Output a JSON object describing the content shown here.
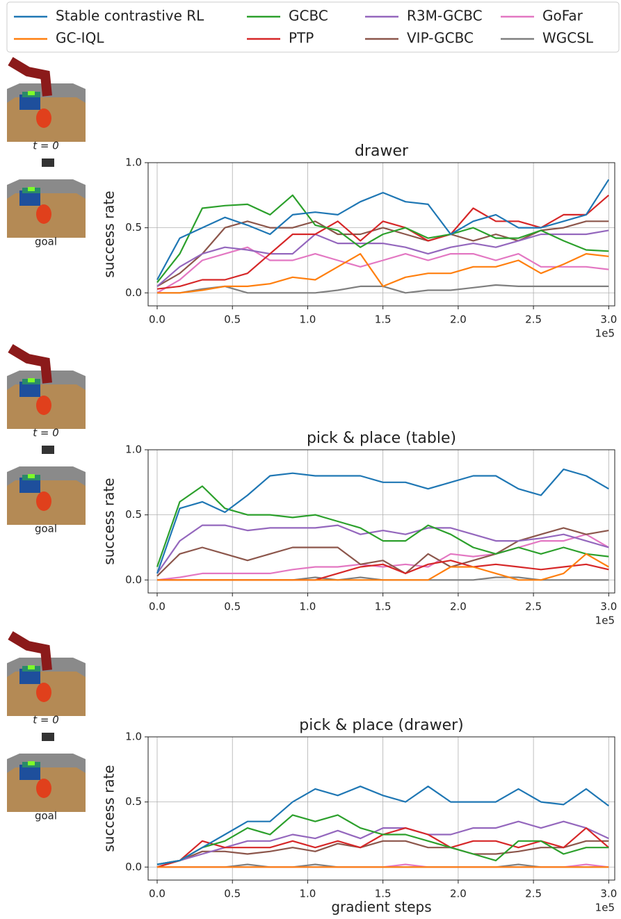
{
  "legend": {
    "ncol": 4
  },
  "thumbnails": [
    {
      "start_caption": "t = 0",
      "goal_caption": "goal"
    },
    {
      "start_caption": "t = 0",
      "goal_caption": "goal"
    },
    {
      "start_caption": "t = 0",
      "goal_caption": "goal"
    }
  ],
  "chart_data": [
    {
      "type": "line",
      "title": "drawer",
      "y_label": "success rate",
      "x_offset_label": "1e5",
      "grid": true,
      "xlim": [
        -0.06,
        3.04
      ],
      "ylim": [
        -0.1,
        1.0
      ],
      "xticks": [
        {
          "value": 0,
          "label": "0.0"
        },
        {
          "value": 0.5,
          "label": "0.5"
        },
        {
          "value": 1,
          "label": "1.0"
        },
        {
          "value": 1.5,
          "label": "1.5"
        },
        {
          "value": 2,
          "label": "2.0"
        },
        {
          "value": 2.5,
          "label": "2.5"
        },
        {
          "value": 3,
          "label": "3.0"
        }
      ],
      "yticks": [
        {
          "value": 0,
          "label": "0.0"
        },
        {
          "value": 0.5,
          "label": "0.5"
        },
        {
          "value": 1,
          "label": "1.0"
        }
      ],
      "x": [
        0,
        0.15,
        0.3,
        0.45,
        0.6,
        0.75,
        0.9,
        1.05,
        1.2,
        1.35,
        1.5,
        1.65,
        1.8,
        1.95,
        2.1,
        2.25,
        2.4,
        2.55,
        2.7,
        2.85,
        3.0
      ],
      "series": [
        {
          "name": "Stable contrastive RL",
          "color": "#1f77b4",
          "values": [
            0.1,
            0.42,
            0.5,
            0.58,
            0.52,
            0.45,
            0.6,
            0.62,
            0.6,
            0.7,
            0.77,
            0.7,
            0.68,
            0.45,
            0.55,
            0.6,
            0.5,
            0.5,
            0.55,
            0.6,
            0.87
          ]
        },
        {
          "name": "GC-IQL",
          "color": "#ff7f0e",
          "values": [
            0,
            0,
            0.02,
            0.05,
            0.05,
            0.07,
            0.12,
            0.1,
            0.2,
            0.3,
            0.05,
            0.12,
            0.15,
            0.15,
            0.2,
            0.2,
            0.25,
            0.15,
            0.22,
            0.3,
            0.28
          ]
        },
        {
          "name": "GCBC",
          "color": "#2ca02c",
          "values": [
            0.08,
            0.3,
            0.65,
            0.67,
            0.68,
            0.6,
            0.75,
            0.52,
            0.48,
            0.35,
            0.45,
            0.5,
            0.42,
            0.45,
            0.5,
            0.42,
            0.42,
            0.48,
            0.4,
            0.33,
            0.32
          ]
        },
        {
          "name": "PTP",
          "color": "#d62728",
          "values": [
            0.03,
            0.05,
            0.1,
            0.1,
            0.15,
            0.3,
            0.45,
            0.45,
            0.55,
            0.4,
            0.55,
            0.5,
            0.4,
            0.45,
            0.65,
            0.55,
            0.55,
            0.5,
            0.6,
            0.6,
            0.75
          ]
        },
        {
          "name": "R3M-GCBC",
          "color": "#9467bd",
          "values": [
            0.05,
            0.2,
            0.3,
            0.35,
            0.33,
            0.3,
            0.3,
            0.45,
            0.38,
            0.38,
            0.38,
            0.35,
            0.3,
            0.35,
            0.38,
            0.35,
            0.4,
            0.45,
            0.45,
            0.45,
            0.48
          ]
        },
        {
          "name": "VIP-GCBC",
          "color": "#8c564b",
          "values": [
            0.05,
            0.15,
            0.3,
            0.5,
            0.55,
            0.5,
            0.5,
            0.55,
            0.45,
            0.45,
            0.5,
            0.45,
            0.4,
            0.45,
            0.4,
            0.45,
            0.4,
            0.48,
            0.5,
            0.55,
            0.55
          ]
        },
        {
          "name": "GoFar",
          "color": "#e377c2",
          "values": [
            0,
            0.1,
            0.25,
            0.3,
            0.35,
            0.25,
            0.25,
            0.3,
            0.25,
            0.2,
            0.25,
            0.3,
            0.25,
            0.3,
            0.3,
            0.25,
            0.3,
            0.2,
            0.2,
            0.2,
            0.18
          ]
        },
        {
          "name": "WGCSL",
          "color": "#7f7f7f",
          "values": [
            0,
            0,
            0.03,
            0.05,
            0,
            0,
            0,
            0,
            0.02,
            0.05,
            0.05,
            0,
            0.02,
            0.02,
            0.04,
            0.06,
            0.05,
            0.05,
            0.05,
            0.05,
            0.05
          ]
        }
      ]
    },
    {
      "type": "line",
      "title": "pick & place (table)",
      "y_label": "success rate",
      "x_offset_label": "1e5",
      "grid": true,
      "xlim": [
        -0.06,
        3.04
      ],
      "ylim": [
        -0.1,
        1.0
      ],
      "xticks": [
        {
          "value": 0,
          "label": "0.0"
        },
        {
          "value": 0.5,
          "label": "0.5"
        },
        {
          "value": 1,
          "label": "1.0"
        },
        {
          "value": 1.5,
          "label": "1.5"
        },
        {
          "value": 2,
          "label": "2.0"
        },
        {
          "value": 2.5,
          "label": "2.5"
        },
        {
          "value": 3,
          "label": "3.0"
        }
      ],
      "yticks": [
        {
          "value": 0,
          "label": "0.0"
        },
        {
          "value": 0.5,
          "label": "0.5"
        },
        {
          "value": 1,
          "label": "1.0"
        }
      ],
      "x": [
        0,
        0.15,
        0.3,
        0.45,
        0.6,
        0.75,
        0.9,
        1.05,
        1.2,
        1.35,
        1.5,
        1.65,
        1.8,
        1.95,
        2.1,
        2.25,
        2.4,
        2.55,
        2.7,
        2.85,
        3.0
      ],
      "series": [
        {
          "name": "Stable contrastive RL",
          "color": "#1f77b4",
          "values": [
            0.05,
            0.55,
            0.6,
            0.52,
            0.65,
            0.8,
            0.82,
            0.8,
            0.8,
            0.8,
            0.75,
            0.75,
            0.7,
            0.75,
            0.8,
            0.8,
            0.7,
            0.65,
            0.85,
            0.8,
            0.7
          ]
        },
        {
          "name": "GC-IQL",
          "color": "#ff7f0e",
          "values": [
            0,
            0,
            0,
            0,
            0,
            0,
            0,
            0,
            0,
            0,
            0,
            0,
            0,
            0.1,
            0.1,
            0.05,
            0,
            0,
            0.05,
            0.2,
            0.1
          ]
        },
        {
          "name": "GCBC",
          "color": "#2ca02c",
          "values": [
            0.1,
            0.6,
            0.72,
            0.55,
            0.5,
            0.5,
            0.48,
            0.5,
            0.45,
            0.4,
            0.3,
            0.3,
            0.42,
            0.35,
            0.25,
            0.2,
            0.25,
            0.2,
            0.25,
            0.2,
            0.18
          ]
        },
        {
          "name": "PTP",
          "color": "#d62728",
          "values": [
            0,
            0,
            0,
            0,
            0,
            0,
            0,
            0,
            0.05,
            0.1,
            0.12,
            0.05,
            0.12,
            0.15,
            0.1,
            0.12,
            0.1,
            0.08,
            0.1,
            0.12,
            0.08
          ]
        },
        {
          "name": "R3M-GCBC",
          "color": "#9467bd",
          "values": [
            0.05,
            0.3,
            0.42,
            0.42,
            0.38,
            0.4,
            0.4,
            0.4,
            0.42,
            0.35,
            0.38,
            0.35,
            0.4,
            0.4,
            0.35,
            0.3,
            0.3,
            0.32,
            0.35,
            0.3,
            0.25
          ]
        },
        {
          "name": "VIP-GCBC",
          "color": "#8c564b",
          "values": [
            0.03,
            0.2,
            0.25,
            0.2,
            0.15,
            0.2,
            0.25,
            0.25,
            0.25,
            0.12,
            0.15,
            0.05,
            0.2,
            0.1,
            0.15,
            0.2,
            0.3,
            0.35,
            0.4,
            0.35,
            0.38
          ]
        },
        {
          "name": "GoFar",
          "color": "#e377c2",
          "values": [
            0,
            0.02,
            0.05,
            0.05,
            0.05,
            0.05,
            0.08,
            0.1,
            0.1,
            0.12,
            0.1,
            0.12,
            0.1,
            0.2,
            0.18,
            0.2,
            0.25,
            0.3,
            0.3,
            0.35,
            0.25
          ]
        },
        {
          "name": "WGCSL",
          "color": "#7f7f7f",
          "values": [
            0,
            0,
            0,
            0,
            0,
            0,
            0,
            0.02,
            0,
            0.02,
            0,
            0,
            0,
            0,
            0,
            0.02,
            0.02,
            0,
            0,
            0,
            0
          ]
        }
      ]
    },
    {
      "type": "line",
      "title": "pick & place (drawer)",
      "y_label": "success rate",
      "x_label": "gradient steps",
      "x_offset_label": "1e5",
      "grid": true,
      "xlim": [
        -0.06,
        3.04
      ],
      "ylim": [
        -0.1,
        1.0
      ],
      "xticks": [
        {
          "value": 0,
          "label": "0.0"
        },
        {
          "value": 0.5,
          "label": "0.5"
        },
        {
          "value": 1,
          "label": "1.0"
        },
        {
          "value": 1.5,
          "label": "1.5"
        },
        {
          "value": 2,
          "label": "2.0"
        },
        {
          "value": 2.5,
          "label": "2.5"
        },
        {
          "value": 3,
          "label": "3.0"
        }
      ],
      "yticks": [
        {
          "value": 0,
          "label": "0.0"
        },
        {
          "value": 0.5,
          "label": "0.5"
        },
        {
          "value": 1,
          "label": "1.0"
        }
      ],
      "x": [
        0,
        0.15,
        0.3,
        0.45,
        0.6,
        0.75,
        0.9,
        1.05,
        1.2,
        1.35,
        1.5,
        1.65,
        1.8,
        1.95,
        2.1,
        2.25,
        2.4,
        2.55,
        2.7,
        2.85,
        3.0
      ],
      "series": [
        {
          "name": "Stable contrastive RL",
          "color": "#1f77b4",
          "values": [
            0.02,
            0.05,
            0.15,
            0.25,
            0.35,
            0.35,
            0.5,
            0.6,
            0.55,
            0.62,
            0.55,
            0.5,
            0.62,
            0.5,
            0.5,
            0.5,
            0.6,
            0.5,
            0.48,
            0.6,
            0.47
          ]
        },
        {
          "name": "GC-IQL",
          "color": "#ff7f0e",
          "values": [
            0,
            0,
            0,
            0,
            0,
            0,
            0,
            0,
            0,
            0,
            0,
            0,
            0,
            0,
            0,
            0,
            0,
            0,
            0,
            0,
            0
          ]
        },
        {
          "name": "GCBC",
          "color": "#2ca02c",
          "values": [
            0.02,
            0.05,
            0.15,
            0.2,
            0.3,
            0.25,
            0.4,
            0.35,
            0.4,
            0.3,
            0.25,
            0.25,
            0.2,
            0.15,
            0.1,
            0.05,
            0.2,
            0.2,
            0.1,
            0.15,
            0.15
          ]
        },
        {
          "name": "PTP",
          "color": "#d62728",
          "values": [
            0,
            0.05,
            0.2,
            0.15,
            0.15,
            0.15,
            0.2,
            0.15,
            0.2,
            0.15,
            0.25,
            0.3,
            0.25,
            0.15,
            0.2,
            0.2,
            0.15,
            0.2,
            0.15,
            0.3,
            0.15
          ]
        },
        {
          "name": "R3M-GCBC",
          "color": "#9467bd",
          "values": [
            0.02,
            0.05,
            0.1,
            0.15,
            0.2,
            0.2,
            0.25,
            0.22,
            0.28,
            0.22,
            0.3,
            0.3,
            0.25,
            0.25,
            0.3,
            0.3,
            0.35,
            0.3,
            0.35,
            0.3,
            0.22
          ]
        },
        {
          "name": "VIP-GCBC",
          "color": "#8c564b",
          "values": [
            0,
            0.05,
            0.12,
            0.12,
            0.1,
            0.12,
            0.15,
            0.12,
            0.18,
            0.15,
            0.2,
            0.2,
            0.15,
            0.15,
            0.1,
            0.1,
            0.12,
            0.15,
            0.15,
            0.2,
            0.2
          ]
        },
        {
          "name": "GoFar",
          "color": "#e377c2",
          "values": [
            0,
            0,
            0,
            0,
            0,
            0,
            0,
            0,
            0,
            0,
            0,
            0.02,
            0,
            0,
            0,
            0,
            0,
            0,
            0,
            0.02,
            0
          ]
        },
        {
          "name": "WGCSL",
          "color": "#7f7f7f",
          "values": [
            0,
            0,
            0,
            0,
            0.02,
            0,
            0,
            0.02,
            0,
            0,
            0,
            0,
            0,
            0,
            0,
            0,
            0.02,
            0,
            0,
            0,
            0
          ]
        }
      ]
    }
  ]
}
